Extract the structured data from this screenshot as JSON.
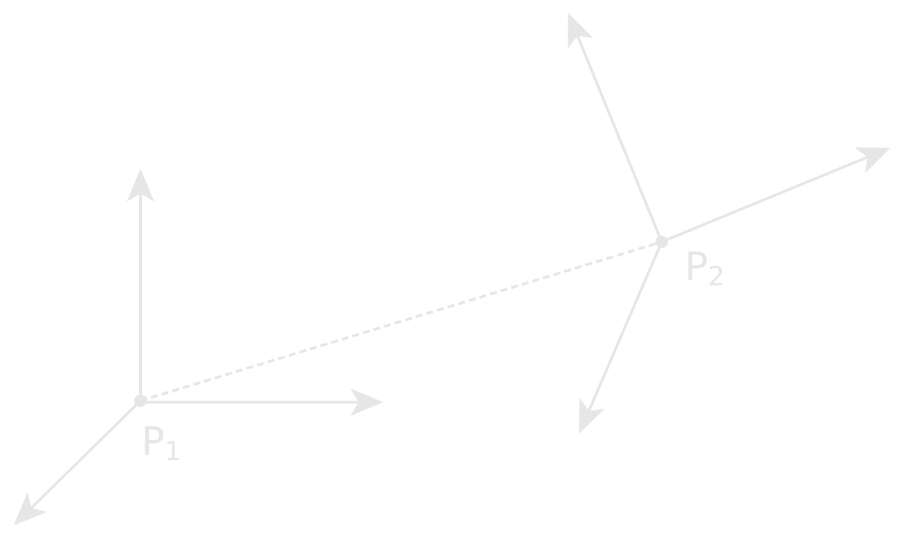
{
  "colors": {
    "stroke": "#e6e6e6",
    "background": "#ffffff"
  },
  "points": {
    "p1": {
      "letter": "P",
      "subscript": "1"
    },
    "p2": {
      "letter": "P",
      "subscript": "2"
    }
  }
}
